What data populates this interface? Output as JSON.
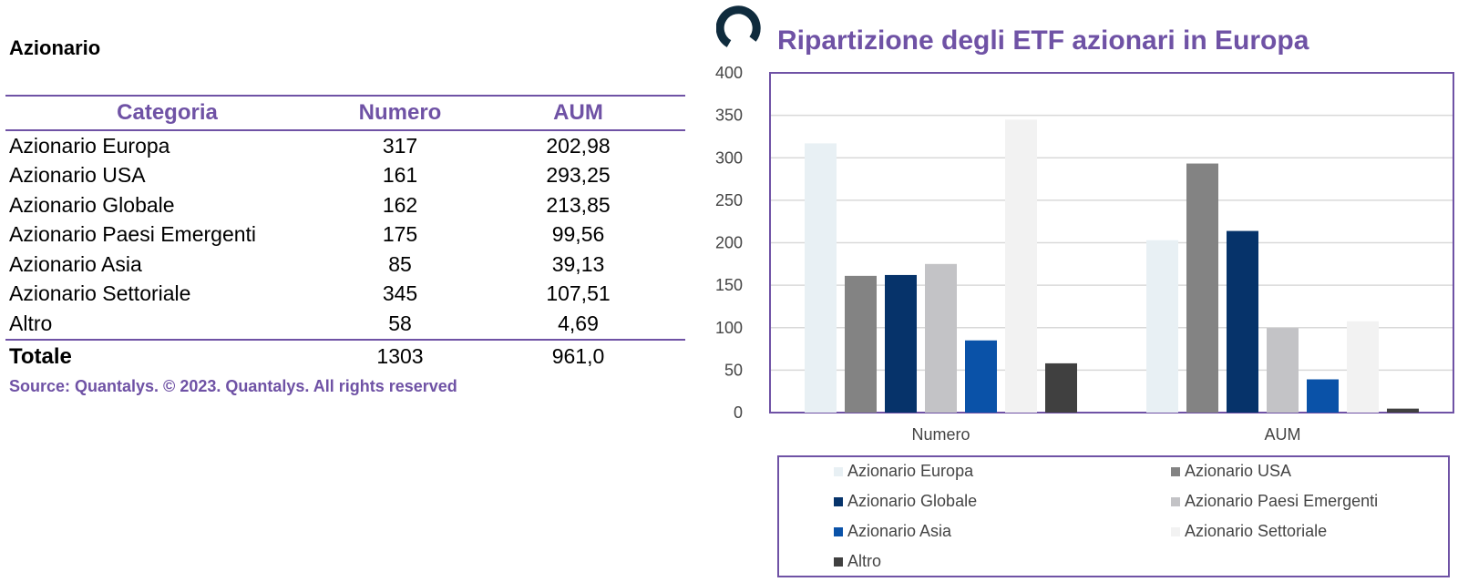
{
  "table_title": "Azionario",
  "table": {
    "headers": [
      "Categoria",
      "Numero",
      "AUM"
    ],
    "rows": [
      [
        "Azionario Europa",
        "317",
        "202,98"
      ],
      [
        "Azionario USA",
        "161",
        "293,25"
      ],
      [
        "Azionario Globale",
        "162",
        "213,85"
      ],
      [
        "Azionario Paesi Emergenti",
        "175",
        "99,56"
      ],
      [
        "Azionario Asia",
        "85",
        "39,13"
      ],
      [
        "Azionario Settoriale",
        "345",
        "107,51"
      ],
      [
        "Altro",
        "58",
        "4,69"
      ]
    ],
    "total": [
      "Totale",
      "1303",
      "961,0"
    ]
  },
  "source": "Source: Quantalys. © 2023. Quantalys. All rights reserved",
  "chart_data": {
    "type": "bar",
    "title": "Ripartizione degli ETF azionari in Europa",
    "categories": [
      "Numero",
      "AUM"
    ],
    "series": [
      {
        "name": "Azionario Europa",
        "values": [
          317,
          202.98
        ],
        "color": "#e8f0f4"
      },
      {
        "name": "Azionario USA",
        "values": [
          161,
          293.25
        ],
        "color": "#838383"
      },
      {
        "name": "Azionario Globale",
        "values": [
          162,
          213.85
        ],
        "color": "#06336a"
      },
      {
        "name": "Azionario Paesi Emergenti",
        "values": [
          175,
          99.56
        ],
        "color": "#c3c3c6"
      },
      {
        "name": "Azionario Asia",
        "values": [
          85,
          39.13
        ],
        "color": "#0a52a8"
      },
      {
        "name": "Azionario Settoriale",
        "values": [
          345,
          107.51
        ],
        "color": "#f2f2f2"
      },
      {
        "name": "Altro",
        "values": [
          58,
          4.69
        ],
        "color": "#404040"
      }
    ],
    "ylim": [
      0,
      400
    ],
    "yticks": [
      0,
      50,
      100,
      150,
      200,
      250,
      300,
      350,
      400
    ],
    "grid": true,
    "legend_position": "bottom",
    "axis_color": "#6f52a5",
    "grid_color": "#d9d9d9"
  },
  "colors": {
    "accent": "#6f52a5",
    "logo": "#0f2b3d"
  }
}
